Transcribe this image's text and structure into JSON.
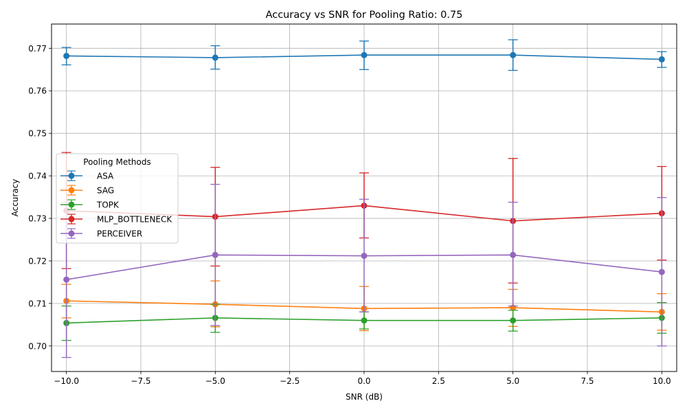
{
  "chart_data": {
    "type": "line",
    "title": "Accuracy vs SNR for Pooling Ratio: 0.75",
    "xlabel": "SNR (dB)",
    "ylabel": "Accuracy",
    "x": [
      -10,
      -5,
      0,
      5,
      10
    ],
    "xlim": [
      -10.5,
      10.5
    ],
    "ylim": [
      0.694,
      0.7757
    ],
    "xticks": [
      -10,
      -7.5,
      -5,
      -2.5,
      0,
      2.5,
      5,
      7.5,
      10
    ],
    "xtick_labels": [
      "−10.0",
      "−7.5",
      "−5.0",
      "−2.5",
      "0.0",
      "2.5",
      "5.0",
      "7.5",
      "10.0"
    ],
    "yticks": [
      0.7,
      0.71,
      0.72,
      0.73,
      0.74,
      0.75,
      0.76,
      0.77
    ],
    "ytick_labels": [
      "0.70",
      "0.71",
      "0.72",
      "0.73",
      "0.74",
      "0.75",
      "0.76",
      "0.77"
    ],
    "grid": true,
    "legend": {
      "title": "Pooling Methods",
      "position": "center-left"
    },
    "series": [
      {
        "name": "ASA",
        "color": "#1f77b4",
        "values": [
          0.7682,
          0.7678,
          0.7684,
          0.7684,
          0.7674
        ],
        "err_low": [
          0.7661,
          0.7651,
          0.765,
          0.7648,
          0.7655
        ],
        "err_high": [
          0.7702,
          0.7706,
          0.7717,
          0.772,
          0.7692
        ]
      },
      {
        "name": "SAG",
        "color": "#ff7f0e",
        "values": [
          0.7106,
          0.7098,
          0.7088,
          0.709,
          0.708
        ],
        "err_low": [
          0.7066,
          0.7045,
          0.7036,
          0.7046,
          0.7037
        ],
        "err_high": [
          0.7145,
          0.7153,
          0.714,
          0.7133,
          0.7123
        ]
      },
      {
        "name": "TOPK",
        "color": "#2ca02c",
        "values": [
          0.7054,
          0.7066,
          0.706,
          0.706,
          0.7066
        ],
        "err_low": [
          0.7013,
          0.7032,
          0.704,
          0.7035,
          0.703
        ],
        "err_high": [
          0.7094,
          0.7098,
          0.708,
          0.7084,
          0.7102
        ]
      },
      {
        "name": "MLP_BOTTLENECK",
        "color": "#d62728",
        "values": [
          0.7318,
          0.7304,
          0.733,
          0.7294,
          0.7312
        ],
        "err_low": [
          0.7182,
          0.7188,
          0.7254,
          0.7148,
          0.7202
        ],
        "err_high": [
          0.7455,
          0.742,
          0.7407,
          0.7441,
          0.7422
        ]
      },
      {
        "name": "PERCEIVER",
        "color": "#9467bd",
        "values": [
          0.7156,
          0.7214,
          0.7212,
          0.7214,
          0.7174
        ],
        "err_low": [
          0.6973,
          0.7048,
          0.708,
          0.7094,
          0.7
        ],
        "err_high": [
          0.7338,
          0.738,
          0.7345,
          0.7338,
          0.7349
        ]
      }
    ]
  }
}
